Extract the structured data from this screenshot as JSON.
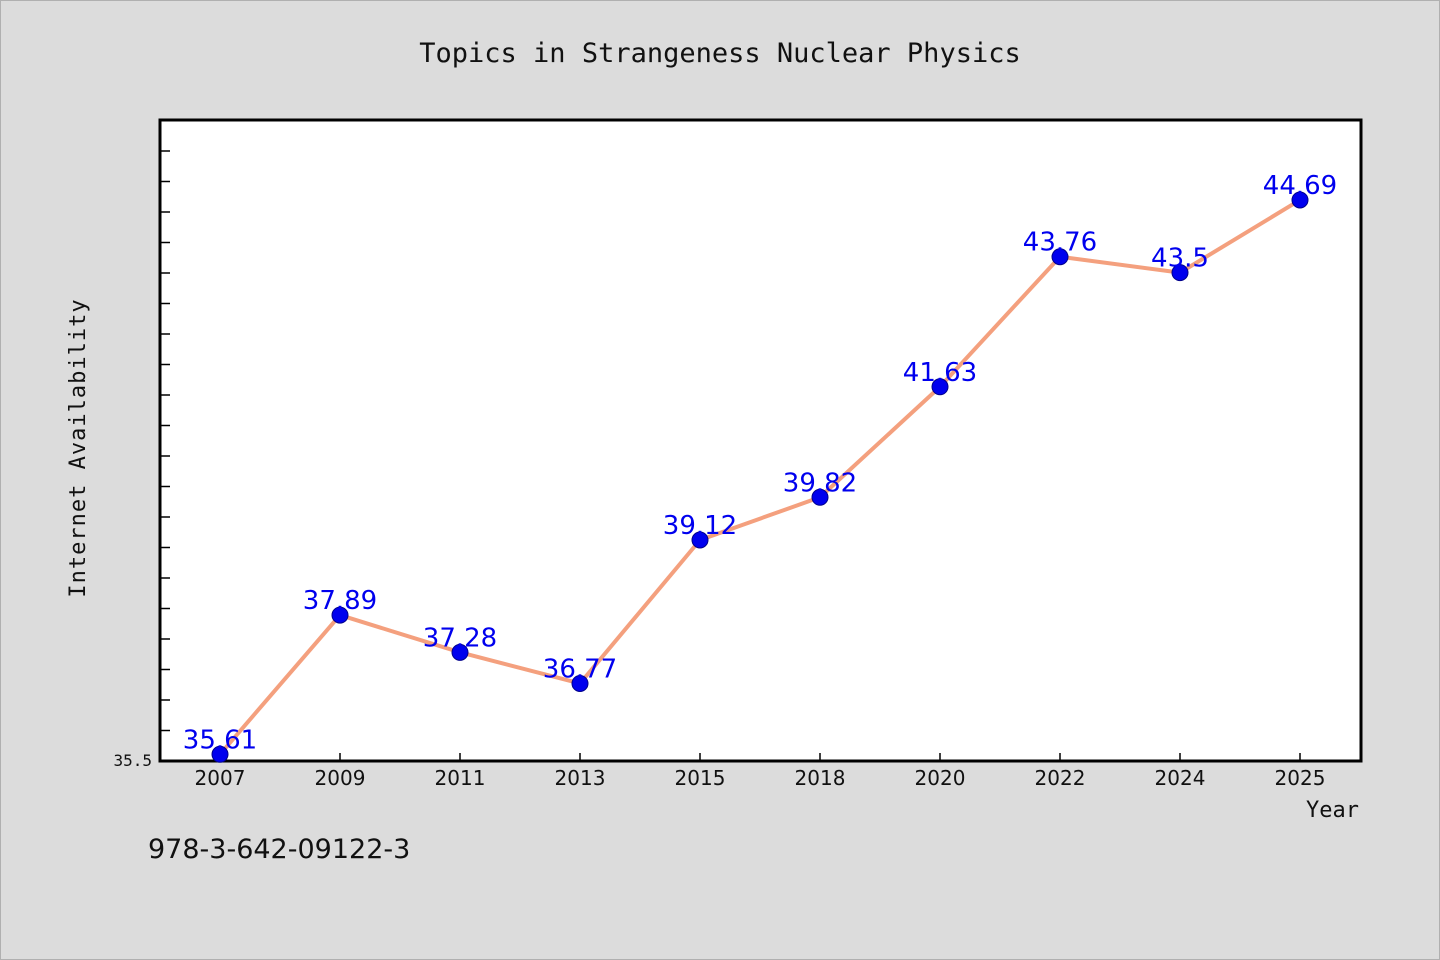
{
  "chart_data": {
    "type": "line",
    "title": "Topics in Strangeness Nuclear Physics",
    "xlabel": "Year",
    "ylabel": "Internet Availability",
    "categories": [
      "2007",
      "2009",
      "2011",
      "2013",
      "2015",
      "2018",
      "2020",
      "2022",
      "2024",
      "2025"
    ],
    "series": [
      {
        "values": [
          35.61,
          37.89,
          37.28,
          36.77,
          39.12,
          39.82,
          41.63,
          43.76,
          43.5,
          44.69
        ]
      }
    ],
    "data_labels": [
      "35.61",
      "37.89",
      "37.28",
      "36.77",
      "39.12",
      "39.82",
      "41.63",
      "43.76",
      "43.5",
      "44.69"
    ],
    "y_tick_labels": [
      "35.5"
    ],
    "ylim": [
      35.5,
      46.0
    ],
    "grid": false,
    "legend": "none",
    "colors": {
      "line": "#f4a07e",
      "marker": "#0000ee",
      "data_label": "#0000ee",
      "plot_bg": "#ffffff",
      "figure_bg": "#dcdcdc"
    }
  },
  "footer": {
    "isbn": "978-3-642-09122-3"
  }
}
